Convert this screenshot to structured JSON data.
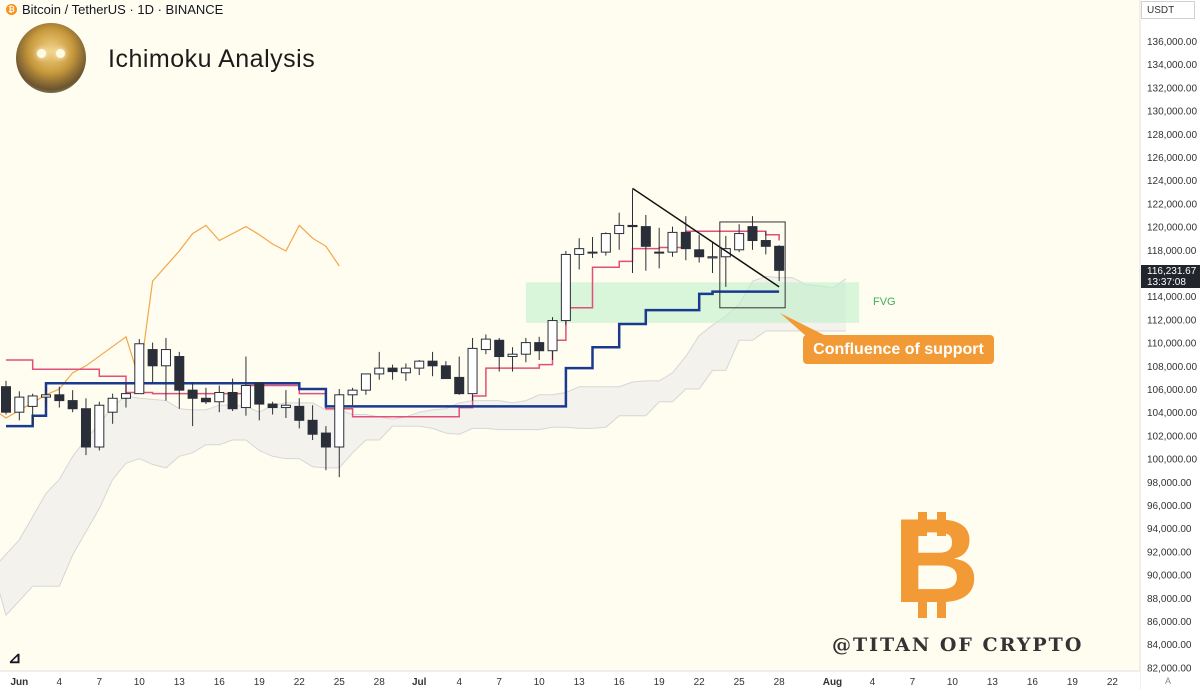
{
  "header": {
    "symbol": "Bitcoin / TetherUS · 1D · BINANCE",
    "currency_selector": "USDT"
  },
  "title": "Ichimoku Analysis",
  "annotations": {
    "callout": "Confluence of support",
    "zone_label": "FVG",
    "watermark": "@TITAN OF CRYPTO",
    "bitcoin_logo": "B"
  },
  "last_price": {
    "value": "116,231.67",
    "countdown": "13:37:08"
  },
  "axis_misc": {
    "auto_label": "A"
  },
  "colors": {
    "background": "#fffdf0",
    "up_candle": "#ffffff",
    "down_candle": "#2a2e39",
    "tenkan": "#e0507a",
    "kijun": "#1a3a8f",
    "chikou": "#f2a64a",
    "cloud": "#e9e9e9",
    "fvg": "#bff0cc",
    "callout": "#f29a35",
    "bitcoin_logo": "#f29a35"
  },
  "chart_data": {
    "type": "candlestick",
    "title": "Ichimoku Analysis",
    "symbol": "Bitcoin / TetherUS · 1D · BINANCE",
    "ylim": [
      81500,
      138500
    ],
    "y_ticks": [
      "82,000.00",
      "84,000.00",
      "86,000.00",
      "88,000.00",
      "90,000.00",
      "92,000.00",
      "94,000.00",
      "96,000.00",
      "98,000.00",
      "100,000.00",
      "102,000.00",
      "104,000.00",
      "106,000.00",
      "108,000.00",
      "110,000.00",
      "112,000.00",
      "114,000.00",
      "116,000.00",
      "118,000.00",
      "120,000.00",
      "122,000.00",
      "124,000.00",
      "126,000.00",
      "128,000.00",
      "130,000.00",
      "132,000.00",
      "134,000.00",
      "136,000.00"
    ],
    "x_ticks": [
      "Jun",
      "4",
      "7",
      "10",
      "13",
      "16",
      "19",
      "22",
      "25",
      "28",
      "Jul",
      "4",
      "7",
      "10",
      "13",
      "16",
      "19",
      "22",
      "25",
      "28",
      "Aug",
      "4",
      "7",
      "10",
      "13",
      "16",
      "19",
      "22"
    ],
    "x_tick_days": [
      1,
      4,
      7,
      10,
      13,
      16,
      19,
      22,
      25,
      28,
      31,
      34,
      37,
      40,
      43,
      46,
      49,
      52,
      55,
      58,
      62,
      65,
      68,
      71,
      74,
      77,
      80,
      83
    ],
    "ohlc": [
      [
        0,
        106200,
        106700,
        103800,
        104000
      ],
      [
        1,
        104000,
        105800,
        103300,
        105300
      ],
      [
        2,
        104500,
        105600,
        102900,
        105400
      ],
      [
        3,
        105300,
        106100,
        104600,
        105500
      ],
      [
        4,
        105500,
        106200,
        104400,
        105000
      ],
      [
        5,
        105000,
        105900,
        104000,
        104300
      ],
      [
        6,
        104300,
        105200,
        100300,
        101000
      ],
      [
        7,
        101000,
        104900,
        100700,
        104600
      ],
      [
        8,
        104000,
        105600,
        103000,
        105200
      ],
      [
        9,
        105200,
        106400,
        104400,
        105600
      ],
      [
        10,
        105600,
        110300,
        105600,
        109900
      ],
      [
        11,
        109400,
        110000,
        106500,
        108000
      ],
      [
        12,
        108000,
        110400,
        105000,
        109400
      ],
      [
        13,
        108800,
        109200,
        104300,
        105900
      ],
      [
        14,
        105900,
        106600,
        102800,
        105200
      ],
      [
        15,
        105200,
        106100,
        104700,
        104900
      ],
      [
        16,
        104900,
        106300,
        104000,
        105700
      ],
      [
        17,
        105700,
        106900,
        104100,
        104300
      ],
      [
        18,
        104400,
        108800,
        103700,
        106300
      ],
      [
        19,
        106500,
        106600,
        103300,
        104700
      ],
      [
        20,
        104700,
        104900,
        103800,
        104400
      ],
      [
        21,
        104400,
        105900,
        103500,
        104600
      ],
      [
        22,
        104500,
        105200,
        102600,
        103300
      ],
      [
        23,
        103300,
        104600,
        101600,
        102100
      ],
      [
        24,
        102200,
        102800,
        99000,
        101000
      ],
      [
        25,
        101000,
        106000,
        98400,
        105500
      ],
      [
        26,
        105500,
        106100,
        104600,
        105900
      ],
      [
        27,
        105900,
        107300,
        105500,
        107300
      ],
      [
        28,
        107300,
        109200,
        106800,
        107800
      ],
      [
        29,
        107800,
        108100,
        106800,
        107500
      ],
      [
        30,
        107400,
        108200,
        106700,
        107800
      ],
      [
        31,
        107800,
        108500,
        107200,
        108400
      ],
      [
        32,
        108400,
        109200,
        107100,
        108000
      ],
      [
        33,
        108000,
        108400,
        107100,
        106900
      ],
      [
        34,
        107000,
        108800,
        105500,
        105600
      ],
      [
        35,
        105600,
        110400,
        105000,
        109500
      ],
      [
        36,
        109400,
        110700,
        109000,
        110300
      ],
      [
        37,
        110200,
        110400,
        107500,
        108800
      ],
      [
        38,
        108800,
        109600,
        107500,
        109000
      ],
      [
        39,
        109000,
        110400,
        108300,
        110000
      ],
      [
        40,
        110000,
        110500,
        108500,
        109300
      ],
      [
        41,
        109300,
        112200,
        108500,
        111900
      ],
      [
        42,
        111900,
        117900,
        111500,
        117600
      ],
      [
        43,
        117600,
        119000,
        116300,
        118100
      ],
      [
        44,
        117800,
        119100,
        117300,
        117800
      ],
      [
        45,
        117800,
        119500,
        117500,
        119400
      ],
      [
        46,
        119400,
        121200,
        118000,
        120100
      ],
      [
        47,
        120100,
        123200,
        116000,
        120000
      ],
      [
        48,
        120000,
        121000,
        116200,
        118300
      ],
      [
        49,
        117800,
        119900,
        116400,
        117800
      ],
      [
        50,
        117800,
        120000,
        117400,
        119500
      ],
      [
        51,
        119500,
        120900,
        117100,
        118100
      ],
      [
        52,
        118000,
        119300,
        116900,
        117400
      ],
      [
        53,
        117300,
        118700,
        116000,
        117400
      ],
      [
        54,
        117400,
        119200,
        114800,
        118100
      ],
      [
        55,
        118000,
        120200,
        117800,
        119400
      ],
      [
        56,
        120000,
        120900,
        118000,
        118800
      ],
      [
        57,
        118800,
        119600,
        117600,
        118300
      ],
      [
        58,
        118300,
        118400,
        115300,
        116231
      ]
    ],
    "tenkan_sen": [
      [
        0,
        108500
      ],
      [
        2,
        107700
      ],
      [
        7,
        107100
      ],
      [
        9,
        105700
      ],
      [
        11,
        105600
      ],
      [
        16,
        105600
      ],
      [
        18,
        106300
      ],
      [
        21,
        106300
      ],
      [
        22,
        105600
      ],
      [
        24,
        104300
      ],
      [
        26,
        103600
      ],
      [
        32,
        103600
      ],
      [
        34,
        104400
      ],
      [
        35,
        105400
      ],
      [
        36,
        107800
      ],
      [
        40,
        108100
      ],
      [
        41,
        110200
      ],
      [
        42,
        113000
      ],
      [
        44,
        116500
      ],
      [
        46,
        117000
      ],
      [
        47,
        118100
      ],
      [
        49,
        118200
      ],
      [
        51,
        119600
      ],
      [
        57,
        119300
      ],
      [
        58,
        118800
      ]
    ],
    "kijun_sen": [
      [
        0,
        102800
      ],
      [
        2,
        103700
      ],
      [
        3,
        106500
      ],
      [
        18,
        106500
      ],
      [
        22,
        106000
      ],
      [
        24,
        104500
      ],
      [
        40,
        104500
      ],
      [
        42,
        107800
      ],
      [
        44,
        109600
      ],
      [
        46,
        111600
      ],
      [
        48,
        112800
      ],
      [
        51,
        112800
      ],
      [
        52,
        114200
      ],
      [
        53,
        114400
      ],
      [
        58,
        114400
      ]
    ],
    "chikou_span": [
      [
        -2,
        105200
      ],
      [
        -1,
        104300
      ],
      [
        0,
        103500
      ],
      [
        3,
        105500
      ],
      [
        4,
        106000
      ],
      [
        5,
        107400
      ],
      [
        6,
        108000
      ],
      [
        9,
        110500
      ],
      [
        10,
        106800
      ],
      [
        11,
        115300
      ],
      [
        13,
        117900
      ],
      [
        14,
        119400
      ],
      [
        15,
        120100
      ],
      [
        16,
        118800
      ],
      [
        17,
        119400
      ],
      [
        18,
        120000
      ],
      [
        19,
        119300
      ],
      [
        20,
        118500
      ],
      [
        21,
        117900
      ],
      [
        22,
        120100
      ],
      [
        23,
        119000
      ],
      [
        24,
        118300
      ],
      [
        25,
        116600
      ]
    ],
    "senkou_span_a": [
      [
        -1,
        90500
      ],
      [
        1,
        93000
      ],
      [
        2,
        95000
      ],
      [
        3,
        97000
      ],
      [
        4,
        98200
      ],
      [
        5,
        100200
      ],
      [
        6,
        101700
      ],
      [
        7,
        103000
      ],
      [
        8,
        104500
      ],
      [
        9,
        105400
      ],
      [
        10,
        105200
      ],
      [
        11,
        105100
      ],
      [
        12,
        105000
      ],
      [
        13,
        104300
      ],
      [
        14,
        104200
      ],
      [
        15,
        104200
      ],
      [
        16,
        104600
      ],
      [
        17,
        104600
      ],
      [
        18,
        104500
      ],
      [
        19,
        104000
      ],
      [
        20,
        104600
      ],
      [
        21,
        104800
      ],
      [
        22,
        104800
      ],
      [
        23,
        104800
      ],
      [
        24,
        104200
      ],
      [
        25,
        104200
      ],
      [
        26,
        103800
      ],
      [
        27,
        103800
      ],
      [
        28,
        103600
      ],
      [
        29,
        103400
      ],
      [
        30,
        103600
      ],
      [
        31,
        104000
      ],
      [
        32,
        104200
      ],
      [
        33,
        104300
      ],
      [
        34,
        104800
      ],
      [
        35,
        105000
      ],
      [
        36,
        105000
      ],
      [
        37,
        105000
      ],
      [
        38,
        104800
      ],
      [
        39,
        105000
      ],
      [
        40,
        105500
      ],
      [
        41,
        105500
      ],
      [
        42,
        105700
      ],
      [
        43,
        106200
      ],
      [
        44,
        106200
      ],
      [
        45,
        106200
      ],
      [
        46,
        106200
      ],
      [
        47,
        106600
      ],
      [
        48,
        106700
      ],
      [
        49,
        106700
      ],
      [
        50,
        107400
      ],
      [
        51,
        108800
      ],
      [
        52,
        110600
      ],
      [
        53,
        111500
      ],
      [
        54,
        112300
      ],
      [
        55,
        113300
      ],
      [
        56,
        115300
      ],
      [
        57,
        115700
      ],
      [
        58,
        115600
      ],
      [
        59,
        115600
      ],
      [
        60,
        115000
      ],
      [
        61,
        114900
      ],
      [
        62,
        114700
      ],
      [
        63,
        115500
      ]
    ],
    "senkou_span_b": [
      [
        -1,
        90500
      ],
      [
        0,
        86500
      ],
      [
        2,
        89000
      ],
      [
        4,
        89000
      ],
      [
        5,
        91700
      ],
      [
        7,
        95700
      ],
      [
        8,
        98200
      ],
      [
        9,
        99600
      ],
      [
        10,
        100000
      ],
      [
        11,
        99500
      ],
      [
        12,
        99200
      ],
      [
        13,
        100200
      ],
      [
        14,
        100500
      ],
      [
        15,
        101200
      ],
      [
        16,
        101200
      ],
      [
        17,
        101600
      ],
      [
        18,
        101600
      ],
      [
        19,
        100700
      ],
      [
        20,
        100200
      ],
      [
        21,
        100000
      ],
      [
        22,
        100000
      ],
      [
        23,
        99300
      ],
      [
        24,
        99200
      ],
      [
        25,
        99200
      ],
      [
        26,
        100500
      ],
      [
        27,
        101600
      ],
      [
        28,
        101600
      ],
      [
        29,
        102800
      ],
      [
        30,
        102800
      ],
      [
        31,
        102800
      ],
      [
        32,
        102600
      ],
      [
        33,
        102200
      ],
      [
        34,
        102100
      ],
      [
        35,
        102600
      ],
      [
        36,
        102600
      ],
      [
        37,
        102500
      ],
      [
        38,
        102500
      ],
      [
        39,
        102500
      ],
      [
        40,
        102500
      ],
      [
        41,
        102700
      ],
      [
        42,
        102700
      ],
      [
        43,
        102600
      ],
      [
        44,
        102600
      ],
      [
        45,
        102700
      ],
      [
        46,
        103700
      ],
      [
        47,
        103700
      ],
      [
        48,
        103700
      ],
      [
        49,
        104900
      ],
      [
        50,
        104900
      ],
      [
        51,
        106000
      ],
      [
        52,
        106000
      ],
      [
        53,
        107600
      ],
      [
        54,
        107600
      ],
      [
        55,
        110200
      ],
      [
        56,
        110200
      ],
      [
        57,
        111000
      ],
      [
        58,
        111000
      ],
      [
        59,
        111000
      ],
      [
        60,
        111000
      ],
      [
        61,
        111000
      ],
      [
        62,
        111000
      ],
      [
        63,
        111000
      ]
    ],
    "trendline": [
      [
        47,
        123300
      ],
      [
        58,
        114800
      ]
    ],
    "fvg_zone": {
      "x": [
        39,
        64
      ],
      "y": [
        111700,
        115200
      ]
    },
    "consolidation_box": {
      "x": [
        54,
        58
      ],
      "y": [
        113000,
        120400
      ]
    }
  }
}
